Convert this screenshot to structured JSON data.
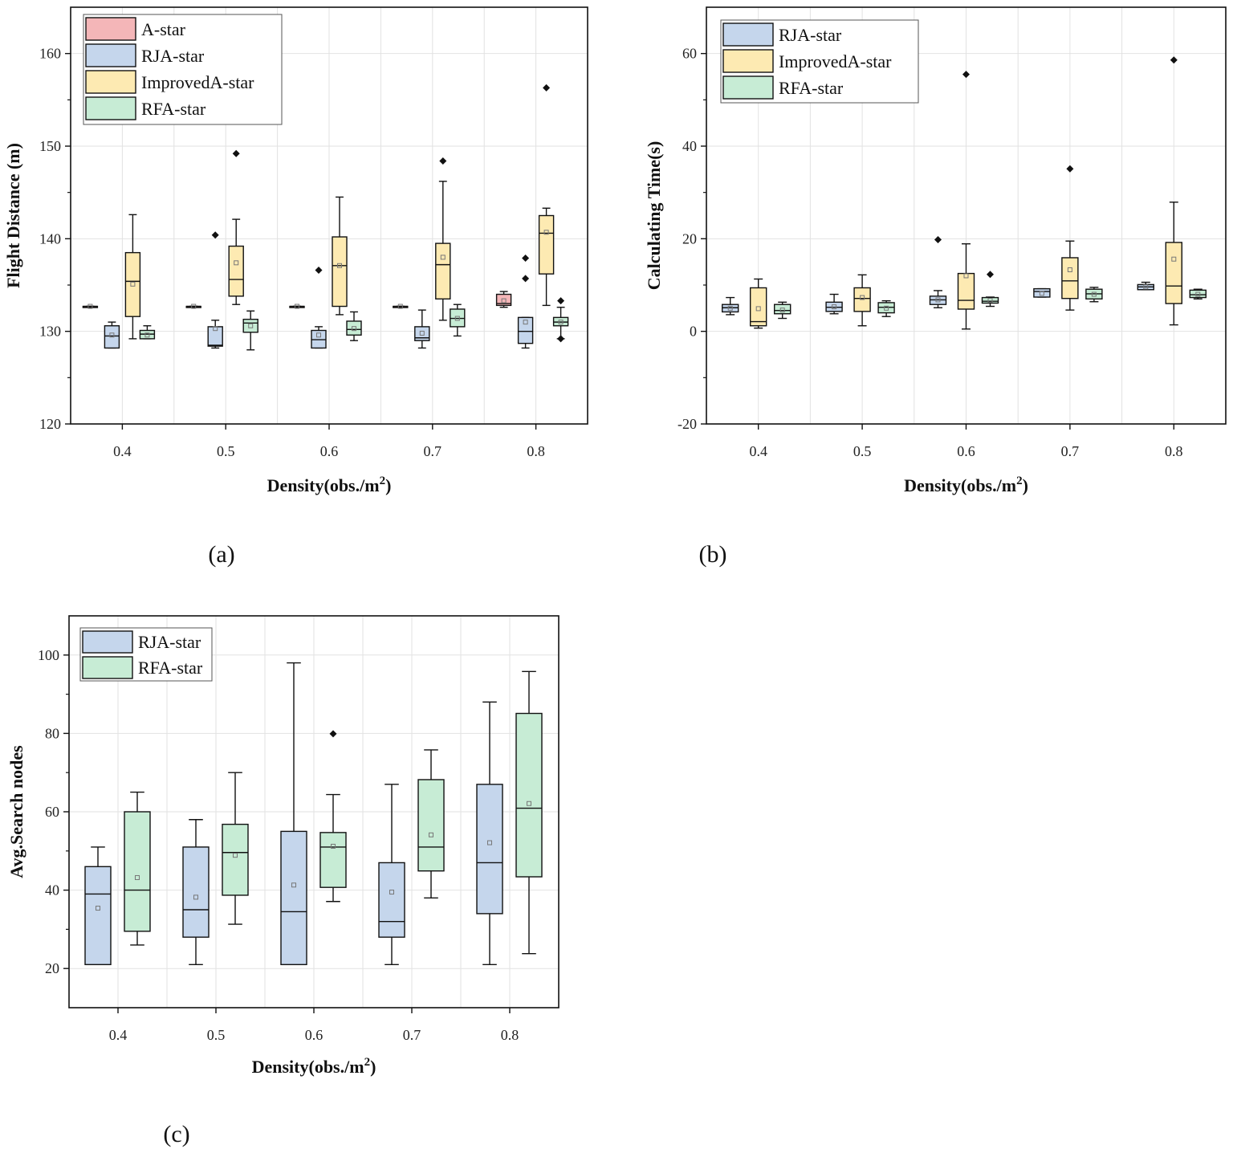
{
  "colors": {
    "A-star": "#f4b6b8",
    "RJA-star": "#c5d6ec",
    "ImprovedA-star": "#fdeab2",
    "RFA-star": "#c7ecd5",
    "outlier": "#111111",
    "grid": "#e2e2e2"
  },
  "chart_data": [
    {
      "id": "a",
      "type": "box",
      "panel_label": "(a)",
      "xlabel_main": "Density(obs./m",
      "xlabel_sup": "2",
      "xlabel_close": ")",
      "ylabel": "Flight Distance (m)",
      "ylim": [
        120,
        165
      ],
      "yticks": [
        120,
        130,
        140,
        150,
        160
      ],
      "categories": [
        "0.4",
        "0.5",
        "0.6",
        "0.7",
        "0.8"
      ],
      "legend": [
        "A-star",
        "RJA-star",
        "ImprovedA-star",
        "RFA-star"
      ],
      "series": [
        {
          "name": "A-star",
          "boxes": [
            {
              "min": 132.7,
              "q1": 132.7,
              "median": 132.7,
              "q3": 132.7,
              "max": 132.7,
              "mean": 132.7,
              "outliers": []
            },
            {
              "min": 132.7,
              "q1": 132.7,
              "median": 132.7,
              "q3": 132.7,
              "max": 132.7,
              "mean": 132.7,
              "outliers": []
            },
            {
              "min": 132.7,
              "q1": 132.7,
              "median": 132.7,
              "q3": 132.7,
              "max": 132.7,
              "mean": 132.7,
              "outliers": []
            },
            {
              "min": 132.7,
              "q1": 132.7,
              "median": 132.7,
              "q3": 132.7,
              "max": 132.7,
              "mean": 132.7,
              "outliers": []
            },
            {
              "min": 132.6,
              "q1": 132.8,
              "median": 133.0,
              "q3": 134.0,
              "max": 134.3,
              "mean": 133.3,
              "outliers": []
            }
          ]
        },
        {
          "name": "RJA-star",
          "boxes": [
            {
              "min": 128.2,
              "q1": 128.2,
              "median": 129.5,
              "q3": 130.6,
              "max": 131.0,
              "mean": 129.6,
              "outliers": []
            },
            {
              "min": 128.2,
              "q1": 128.4,
              "median": 128.5,
              "q3": 130.5,
              "max": 131.2,
              "mean": 130.3,
              "outliers": [
                140.4
              ]
            },
            {
              "min": 128.2,
              "q1": 128.2,
              "median": 129.1,
              "q3": 130.1,
              "max": 130.5,
              "mean": 129.6,
              "outliers": [
                136.6
              ]
            },
            {
              "min": 128.2,
              "q1": 129.0,
              "median": 129.3,
              "q3": 130.5,
              "max": 132.3,
              "mean": 129.8,
              "outliers": []
            },
            {
              "min": 128.2,
              "q1": 128.7,
              "median": 130.0,
              "q3": 131.5,
              "max": 131.5,
              "mean": 131.0,
              "outliers": [
                137.9,
                135.7
              ]
            }
          ]
        },
        {
          "name": "ImprovedA-star",
          "boxes": [
            {
              "min": 129.2,
              "q1": 131.6,
              "median": 135.4,
              "q3": 138.5,
              "max": 142.6,
              "mean": 135.1,
              "outliers": []
            },
            {
              "min": 132.9,
              "q1": 133.8,
              "median": 135.6,
              "q3": 139.2,
              "max": 142.1,
              "mean": 137.4,
              "outliers": [
                149.2
              ]
            },
            {
              "min": 131.8,
              "q1": 132.7,
              "median": 137.1,
              "q3": 140.2,
              "max": 144.5,
              "mean": 137.1,
              "outliers": []
            },
            {
              "min": 131.2,
              "q1": 133.5,
              "median": 137.2,
              "q3": 139.5,
              "max": 146.2,
              "mean": 138.0,
              "outliers": [
                148.4
              ]
            },
            {
              "min": 132.8,
              "q1": 136.2,
              "median": 140.6,
              "q3": 142.5,
              "max": 143.3,
              "mean": 140.7,
              "outliers": [
                156.3
              ]
            }
          ]
        },
        {
          "name": "RFA-star",
          "boxes": [
            {
              "min": 129.2,
              "q1": 129.2,
              "median": 129.7,
              "q3": 130.1,
              "max": 130.6,
              "mean": 129.6,
              "outliers": []
            },
            {
              "min": 128.0,
              "q1": 129.9,
              "median": 130.9,
              "q3": 131.3,
              "max": 132.2,
              "mean": 130.6,
              "outliers": []
            },
            {
              "min": 129.0,
              "q1": 129.6,
              "median": 130.2,
              "q3": 131.1,
              "max": 132.1,
              "mean": 130.3,
              "outliers": []
            },
            {
              "min": 129.5,
              "q1": 130.5,
              "median": 131.4,
              "q3": 132.4,
              "max": 132.9,
              "mean": 131.4,
              "outliers": []
            },
            {
              "min": 129.2,
              "q1": 130.6,
              "median": 131.0,
              "q3": 131.5,
              "max": 132.6,
              "mean": 131.0,
              "outliers": [
                133.3,
                129.2
              ]
            }
          ]
        }
      ]
    },
    {
      "id": "b",
      "type": "box",
      "panel_label": "(b)",
      "xlabel_main": "Density(obs./m",
      "xlabel_sup": "2",
      "xlabel_close": ")",
      "ylabel": "Calculating Time(s)",
      "ylim": [
        -20,
        70
      ],
      "yticks": [
        -20,
        0,
        20,
        40,
        60
      ],
      "categories": [
        "0.4",
        "0.5",
        "0.6",
        "0.7",
        "0.8"
      ],
      "legend": [
        "RJA-star",
        "ImprovedA-star",
        "RFA-star"
      ],
      "series": [
        {
          "name": "RJA-star",
          "boxes": [
            {
              "min": 3.6,
              "q1": 4.2,
              "median": 5.1,
              "q3": 5.8,
              "max": 7.3,
              "mean": 5.0,
              "outliers": []
            },
            {
              "min": 3.8,
              "q1": 4.3,
              "median": 5.2,
              "q3": 6.3,
              "max": 8.0,
              "mean": 5.3,
              "outliers": []
            },
            {
              "min": 5.1,
              "q1": 5.8,
              "median": 6.8,
              "q3": 7.6,
              "max": 8.8,
              "mean": 6.8,
              "outliers": [
                19.8
              ]
            },
            {
              "min": 7.4,
              "q1": 7.4,
              "median": 8.6,
              "q3": 9.2,
              "max": 9.2,
              "mean": 8.2,
              "outliers": []
            },
            {
              "min": 9.0,
              "q1": 9.0,
              "median": 9.6,
              "q3": 10.1,
              "max": 10.6,
              "mean": 9.6,
              "outliers": []
            }
          ]
        },
        {
          "name": "ImprovedA-star",
          "boxes": [
            {
              "min": 0.7,
              "q1": 1.2,
              "median": 2.1,
              "q3": 9.4,
              "max": 11.3,
              "mean": 4.9,
              "outliers": []
            },
            {
              "min": 1.2,
              "q1": 4.3,
              "median": 7.1,
              "q3": 9.4,
              "max": 12.2,
              "mean": 7.3,
              "outliers": []
            },
            {
              "min": 0.5,
              "q1": 4.8,
              "median": 6.7,
              "q3": 12.5,
              "max": 18.9,
              "mean": 12.0,
              "outliers": [
                55.5
              ]
            },
            {
              "min": 4.6,
              "q1": 7.1,
              "median": 10.9,
              "q3": 15.9,
              "max": 19.5,
              "mean": 13.3,
              "outliers": [
                35.1
              ]
            },
            {
              "min": 1.4,
              "q1": 6.0,
              "median": 9.8,
              "q3": 19.2,
              "max": 27.9,
              "mean": 15.6,
              "outliers": [
                58.6
              ]
            }
          ]
        },
        {
          "name": "RFA-star",
          "boxes": [
            {
              "min": 2.8,
              "q1": 3.8,
              "median": 4.5,
              "q3": 5.8,
              "max": 6.3,
              "mean": 4.6,
              "outliers": []
            },
            {
              "min": 3.2,
              "q1": 4.0,
              "median": 5.2,
              "q3": 6.2,
              "max": 6.6,
              "mean": 5.0,
              "outliers": []
            },
            {
              "min": 5.4,
              "q1": 6.1,
              "median": 6.5,
              "q3": 7.3,
              "max": 7.4,
              "mean": 6.7,
              "outliers": [
                12.3
              ]
            },
            {
              "min": 6.4,
              "q1": 7.0,
              "median": 8.1,
              "q3": 9.1,
              "max": 9.5,
              "mean": 8.0,
              "outliers": []
            },
            {
              "min": 7.0,
              "q1": 7.3,
              "median": 7.9,
              "q3": 8.9,
              "max": 9.1,
              "mean": 8.0,
              "outliers": []
            }
          ]
        }
      ]
    },
    {
      "id": "c",
      "type": "box",
      "panel_label": "(c)",
      "xlabel_main": "Density(obs./m",
      "xlabel_sup": "2",
      "xlabel_close": ")",
      "ylabel": "Avg.Search nodes",
      "ylim": [
        10,
        110
      ],
      "yticks": [
        20,
        40,
        60,
        80,
        100
      ],
      "categories": [
        "0.4",
        "0.5",
        "0.6",
        "0.7",
        "0.8"
      ],
      "legend": [
        "RJA-star",
        "RFA-star"
      ],
      "series": [
        {
          "name": "RJA-star",
          "boxes": [
            {
              "min": 21,
              "q1": 21,
              "median": 39,
              "q3": 46,
              "max": 51,
              "mean": 35.4,
              "outliers": []
            },
            {
              "min": 21,
              "q1": 28,
              "median": 35,
              "q3": 51,
              "max": 58,
              "mean": 38.2,
              "outliers": []
            },
            {
              "min": 21,
              "q1": 21,
              "median": 34.5,
              "q3": 55,
              "max": 98,
              "mean": 41.3,
              "outliers": []
            },
            {
              "min": 21,
              "q1": 28,
              "median": 32,
              "q3": 47,
              "max": 67,
              "mean": 39.5,
              "outliers": []
            },
            {
              "min": 21,
              "q1": 34,
              "median": 47,
              "q3": 67,
              "max": 88,
              "mean": 52.1,
              "outliers": []
            }
          ]
        },
        {
          "name": "RFA-star",
          "boxes": [
            {
              "min": 26,
              "q1": 29.5,
              "median": 40,
              "q3": 60,
              "max": 65,
              "mean": 43.2,
              "outliers": []
            },
            {
              "min": 31.3,
              "q1": 38.7,
              "median": 49.6,
              "q3": 56.8,
              "max": 70,
              "mean": 48.9,
              "outliers": []
            },
            {
              "min": 37.1,
              "q1": 40.7,
              "median": 51,
              "q3": 54.7,
              "max": 64.4,
              "mean": 51.2,
              "outliers": [
                79.9
              ]
            },
            {
              "min": 38,
              "q1": 44.9,
              "median": 51,
              "q3": 68.2,
              "max": 75.8,
              "mean": 54.1,
              "outliers": []
            },
            {
              "min": 23.8,
              "q1": 43.4,
              "median": 60.9,
              "q3": 85.1,
              "max": 95.8,
              "mean": 62.1,
              "outliers": []
            }
          ]
        }
      ]
    }
  ]
}
